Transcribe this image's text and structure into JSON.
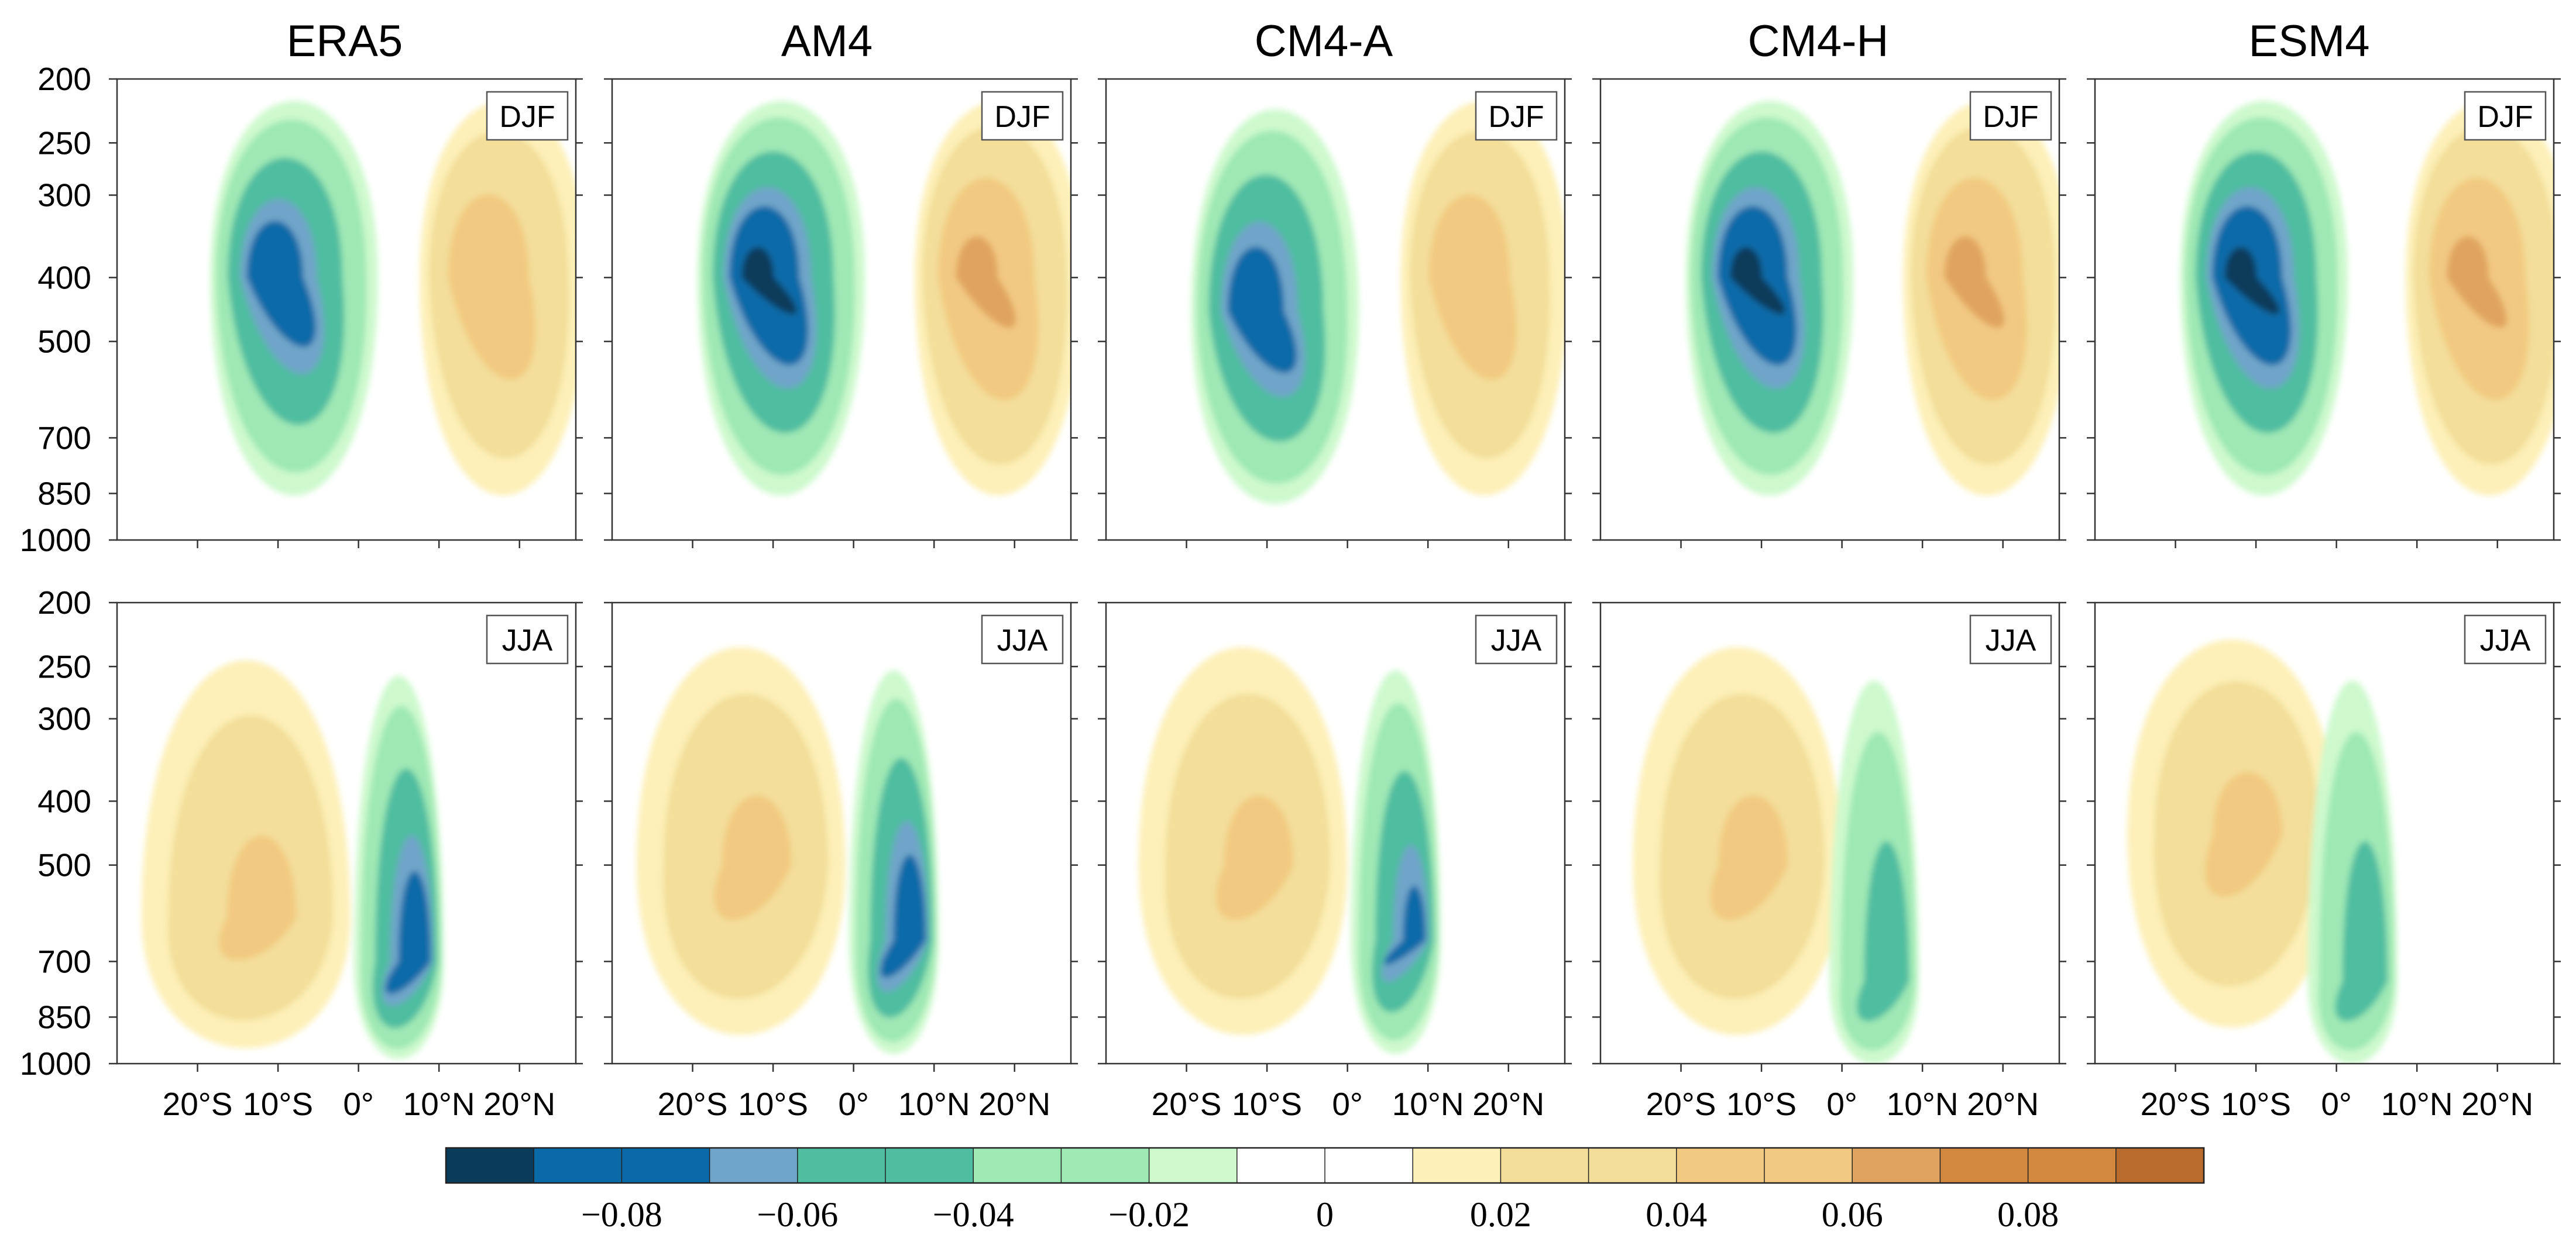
{
  "chart_data": {
    "type": "heatmap",
    "description_units": "contour-filled anomaly field vs latitude and pressure",
    "column_titles": [
      "ERA5",
      "AM4",
      "CM4-A",
      "CM4-H",
      "ESM4"
    ],
    "row_labels": [
      "DJF",
      "JJA"
    ],
    "y_ticks": [
      "200",
      "250",
      "300",
      "400",
      "500",
      "700",
      "850",
      "1000"
    ],
    "y_tick_values": [
      200,
      250,
      300,
      400,
      500,
      700,
      850,
      1000
    ],
    "ylim": [
      200,
      1000
    ],
    "y_scale": "log",
    "x_ticks": [
      "20°S",
      "10°S",
      "0°",
      "10°N",
      "20°N"
    ],
    "x_tick_values": [
      -20,
      -10,
      0,
      10,
      20
    ],
    "xlim": [
      -30,
      27
    ],
    "colorbar": {
      "levels": [
        -0.09,
        -0.08,
        -0.07,
        -0.06,
        -0.05,
        -0.04,
        -0.03,
        -0.02,
        -0.01,
        0,
        0.01,
        0.02,
        0.03,
        0.04,
        0.05,
        0.06,
        0.07,
        0.08,
        0.09
      ],
      "colors": [
        "#0b3b5a",
        "#0a6aa8",
        "#0a6aa8",
        "#6fa5c9",
        "#4fbda0",
        "#4fbda0",
        "#9ee8b4",
        "#9ee8b4",
        "#cdf9cd",
        "#ffffff",
        "#ffffff",
        "#fdf0b8",
        "#f3de9a",
        "#f3de9a",
        "#f2c980",
        "#f2c980",
        "#e0a460",
        "#d38840",
        "#d38840",
        "#b86b2c"
      ],
      "tick_labels": [
        "−0.08",
        "−0.06",
        "−0.04",
        "−0.02",
        "0",
        "0.02",
        "0.04",
        "0.06",
        "0.08"
      ],
      "tick_values": [
        -0.08,
        -0.06,
        -0.04,
        -0.02,
        0,
        0.02,
        0.04,
        0.06,
        0.08
      ]
    },
    "panels": [
      {
        "model": "ERA5",
        "season": "DJF",
        "neg_peak": -0.075,
        "neg_center_lat": -8,
        "neg_center_p": 400,
        "pos_peak": 0.045,
        "pos_center_lat": 18,
        "pos_center_p": 400
      },
      {
        "model": "AM4",
        "season": "DJF",
        "neg_peak": -0.09,
        "neg_center_lat": -9,
        "neg_center_p": 400,
        "pos_peak": 0.055,
        "pos_center_lat": 18,
        "pos_center_p": 400
      },
      {
        "model": "CM4-A",
        "season": "DJF",
        "neg_peak": -0.075,
        "neg_center_lat": -9,
        "neg_center_p": 450,
        "pos_peak": 0.045,
        "pos_center_lat": 17,
        "pos_center_p": 400
      },
      {
        "model": "CM4-H",
        "season": "DJF",
        "neg_peak": -0.09,
        "neg_center_lat": -9,
        "neg_center_p": 400,
        "pos_peak": 0.055,
        "pos_center_lat": 18,
        "pos_center_p": 400
      },
      {
        "model": "ESM4",
        "season": "DJF",
        "neg_peak": -0.09,
        "neg_center_lat": -9,
        "neg_center_p": 400,
        "pos_peak": 0.055,
        "pos_center_lat": 19,
        "pos_center_p": 400
      },
      {
        "model": "ERA5",
        "season": "JJA",
        "neg_peak": -0.075,
        "neg_center_lat": 5,
        "neg_center_p": 700,
        "pos_peak": 0.035,
        "pos_center_lat": -14,
        "pos_center_p": 600
      },
      {
        "model": "AM4",
        "season": "JJA",
        "neg_peak": -0.075,
        "neg_center_lat": 5,
        "neg_center_p": 650,
        "pos_peak": 0.035,
        "pos_center_lat": -14,
        "pos_center_p": 500
      },
      {
        "model": "CM4-A",
        "season": "JJA",
        "neg_peak": -0.065,
        "neg_center_lat": 6,
        "neg_center_p": 650,
        "pos_peak": 0.035,
        "pos_center_lat": -13,
        "pos_center_p": 500
      },
      {
        "model": "CM4-H",
        "season": "JJA",
        "neg_peak": -0.045,
        "neg_center_lat": 4,
        "neg_center_p": 750,
        "pos_peak": 0.035,
        "pos_center_lat": -13,
        "pos_center_p": 500
      },
      {
        "model": "ESM4",
        "season": "JJA",
        "neg_peak": -0.045,
        "neg_center_lat": 2,
        "neg_center_p": 750,
        "pos_peak": 0.035,
        "pos_center_lat": -13,
        "pos_center_p": 450
      }
    ]
  }
}
